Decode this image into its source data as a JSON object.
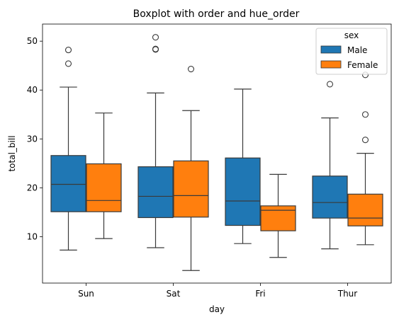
{
  "chart_data": {
    "type": "boxplot",
    "title": "Boxplot with order and hue_order",
    "xlabel": "day",
    "ylabel": "total_bill",
    "categories": [
      "Sun",
      "Sat",
      "Fri",
      "Thur"
    ],
    "ylim": [
      0.5,
      53.5
    ],
    "yticks": [
      10,
      20,
      30,
      40,
      50
    ],
    "grid": false,
    "legend": {
      "title": "sex",
      "placement": "top-right"
    },
    "series": [
      {
        "name": "Male",
        "color": "#1f77b4",
        "boxes": [
          {
            "category": "Sun",
            "min": 7.25,
            "q1": 15.1,
            "median": 20.7,
            "q3": 26.6,
            "max": 40.6,
            "fliers": [
              45.4,
              48.2
            ]
          },
          {
            "category": "Sat",
            "min": 7.74,
            "q1": 13.9,
            "median": 18.25,
            "q3": 24.3,
            "max": 39.4,
            "fliers": [
              48.3,
              48.4,
              50.8
            ]
          },
          {
            "category": "Fri",
            "min": 8.58,
            "q1": 12.3,
            "median": 17.3,
            "q3": 26.1,
            "max": 40.2,
            "fliers": []
          },
          {
            "category": "Thur",
            "min": 7.51,
            "q1": 13.8,
            "median": 16.98,
            "q3": 22.4,
            "max": 34.3,
            "fliers": [
              41.2
            ]
          }
        ]
      },
      {
        "name": "Female",
        "color": "#ff7f0e",
        "boxes": [
          {
            "category": "Sun",
            "min": 9.6,
            "q1": 15.1,
            "median": 17.4,
            "q3": 24.9,
            "max": 35.3,
            "fliers": []
          },
          {
            "category": "Sat",
            "min": 3.07,
            "q1": 14.0,
            "median": 18.4,
            "q3": 25.5,
            "max": 35.8,
            "fliers": [
              44.3
            ]
          },
          {
            "category": "Fri",
            "min": 5.75,
            "q1": 11.2,
            "median": 15.4,
            "q3": 16.3,
            "max": 22.75,
            "fliers": []
          },
          {
            "category": "Thur",
            "min": 8.35,
            "q1": 12.2,
            "median": 13.8,
            "q3": 18.7,
            "max": 27.05,
            "fliers": [
              29.8,
              35.0,
              43.1
            ]
          }
        ]
      }
    ]
  }
}
